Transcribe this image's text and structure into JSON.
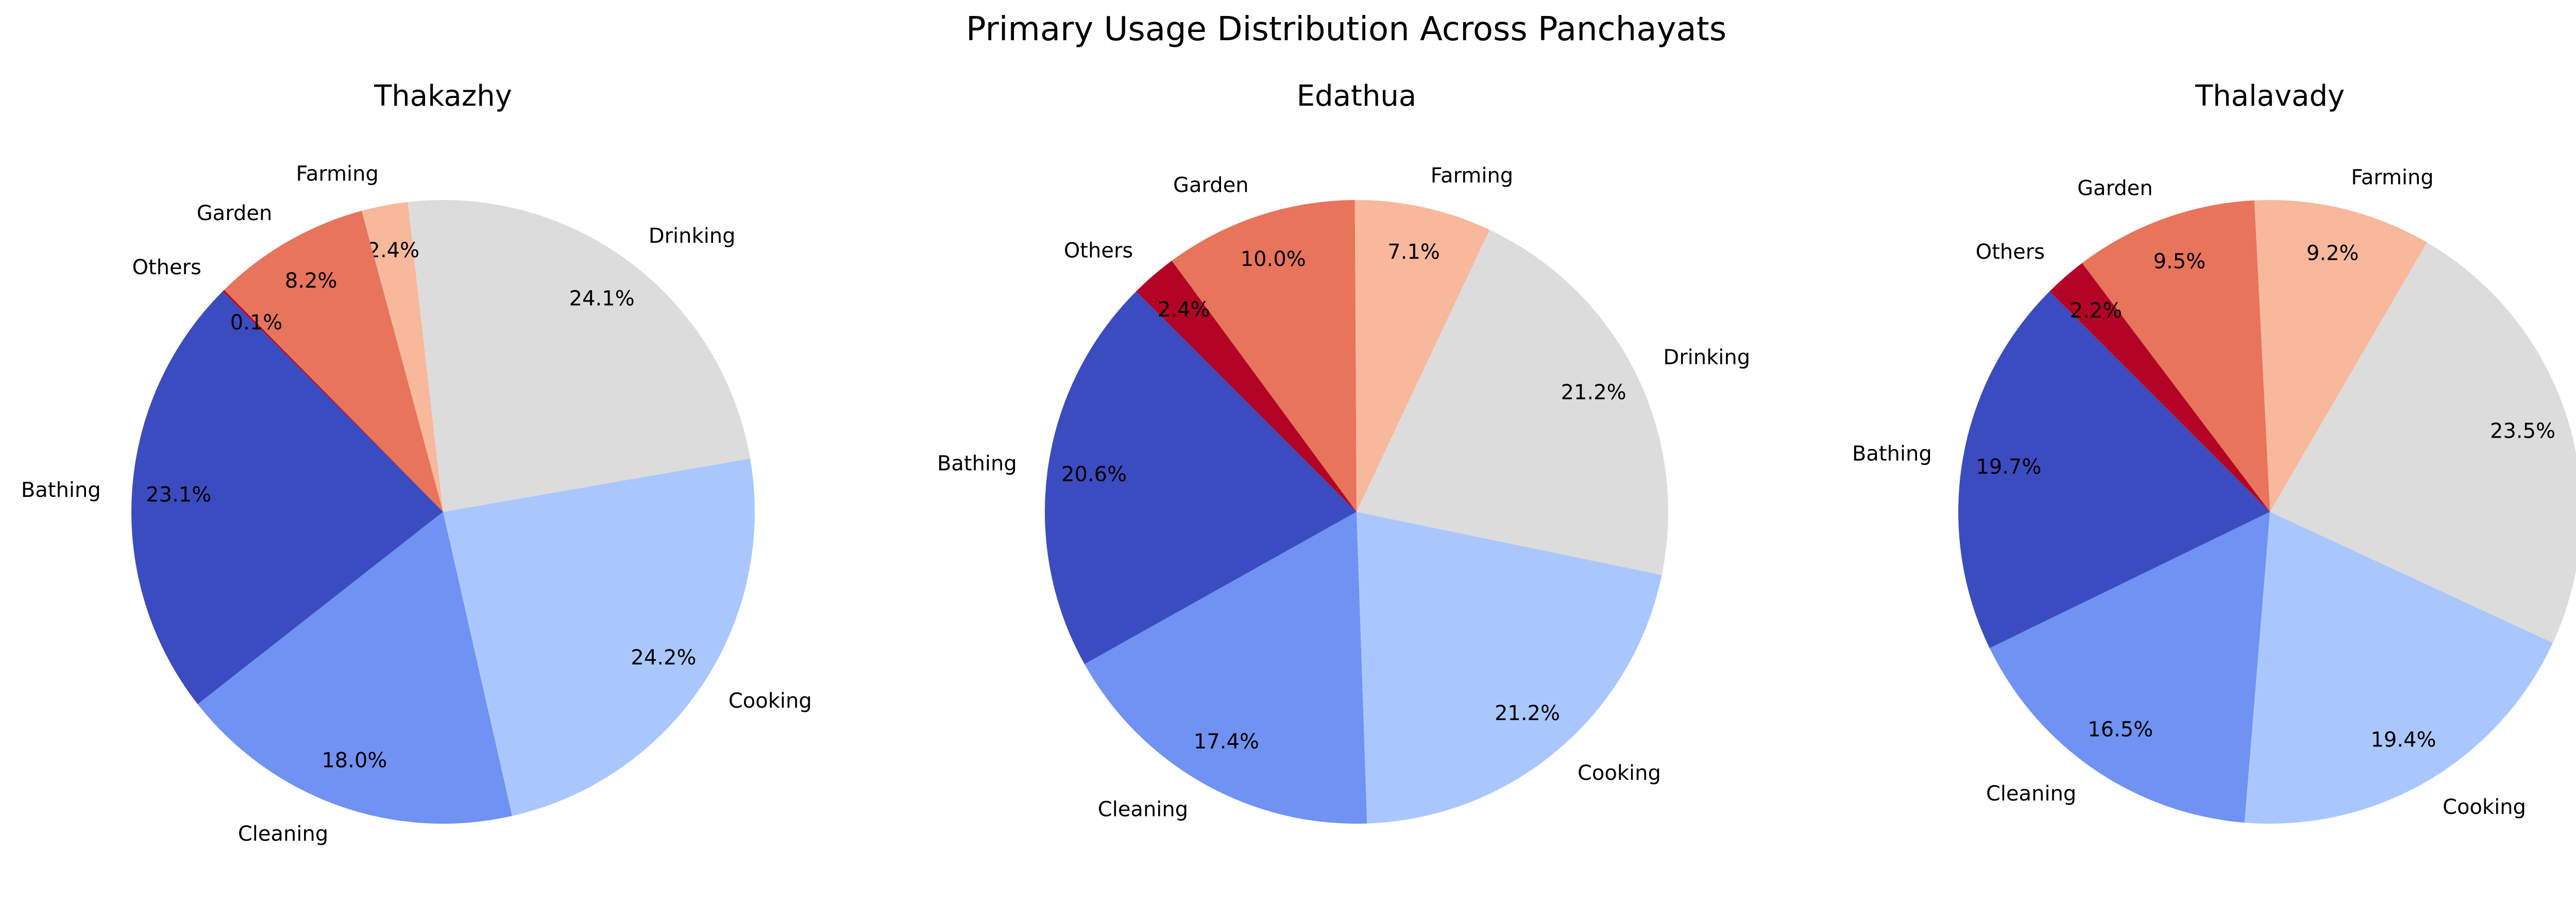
{
  "figure_title": "Primary Usage Distribution Across Panchayats",
  "colors": {
    "Bathing": "#3b4cc0",
    "Cleaning": "#7092f3",
    "Cooking": "#aac7fd",
    "Drinking": "#dddcdc",
    "Farming": "#f7b89c",
    "Garden": "#e7745b",
    "Others": "#b40426"
  },
  "chart_data": [
    {
      "type": "pie",
      "title": "Thakazhy",
      "categories": [
        "Bathing",
        "Cleaning",
        "Cooking",
        "Drinking",
        "Farming",
        "Garden",
        "Others"
      ],
      "values": [
        23.1,
        18.0,
        24.2,
        24.1,
        2.4,
        8.2,
        0.1
      ],
      "value_labels": [
        "23.1%",
        "18.0%",
        "24.2%",
        "24.1%",
        "2.4%",
        "8.2%",
        "0.1%"
      ]
    },
    {
      "type": "pie",
      "title": "Edathua",
      "categories": [
        "Bathing",
        "Cleaning",
        "Cooking",
        "Drinking",
        "Farming",
        "Garden",
        "Others"
      ],
      "values": [
        20.6,
        17.4,
        21.2,
        21.2,
        7.1,
        10.0,
        2.4
      ],
      "value_labels": [
        "20.6%",
        "17.4%",
        "21.2%",
        "21.2%",
        "7.1%",
        "10.0%",
        "2.4%"
      ]
    },
    {
      "type": "pie",
      "title": "Thalavady",
      "categories": [
        "Bathing",
        "Cleaning",
        "Cooking",
        "Drinking",
        "Farming",
        "Garden",
        "Others"
      ],
      "values": [
        19.7,
        16.5,
        19.4,
        23.5,
        9.2,
        9.5,
        2.2
      ],
      "value_labels": [
        "19.7%",
        "16.5%",
        "19.4%",
        "23.5%",
        "9.2%",
        "9.5%",
        "2.2%"
      ]
    }
  ]
}
